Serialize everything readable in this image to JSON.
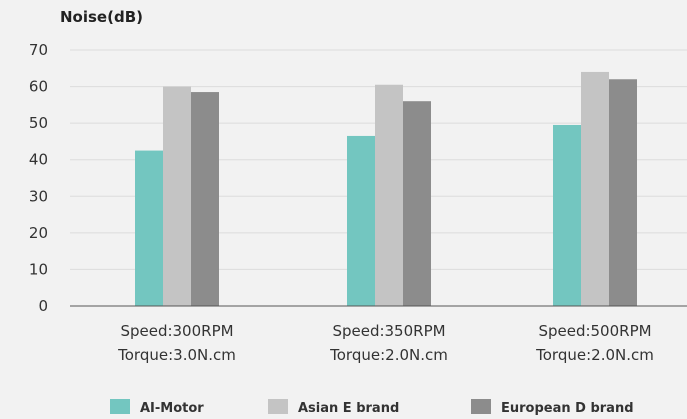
{
  "chart_data": {
    "type": "bar",
    "title": "",
    "ylabel": "Noise(dB)",
    "xlabel": "",
    "ylim": [
      0,
      70
    ],
    "yticks": [
      0,
      10,
      20,
      30,
      40,
      50,
      60,
      70
    ],
    "grid": "horizontal",
    "legend_position": "bottom",
    "categories": [
      {
        "line1": "Speed:300RPM",
        "line2": "Torque:3.0N.cm"
      },
      {
        "line1": "Speed:350RPM",
        "line2": "Torque:2.0N.cm"
      },
      {
        "line1": "Speed:500RPM",
        "line2": "Torque:2.0N.cm"
      }
    ],
    "series": [
      {
        "name": "AI-Motor",
        "color": "#73c6c0",
        "values": [
          42.5,
          46.5,
          49.5
        ]
      },
      {
        "name": "Asian E brand",
        "color": "#c4c4c4",
        "values": [
          60,
          60.5,
          64
        ]
      },
      {
        "name": "European D brand",
        "color": "#8c8c8c",
        "values": [
          58.5,
          56,
          62
        ]
      }
    ]
  }
}
